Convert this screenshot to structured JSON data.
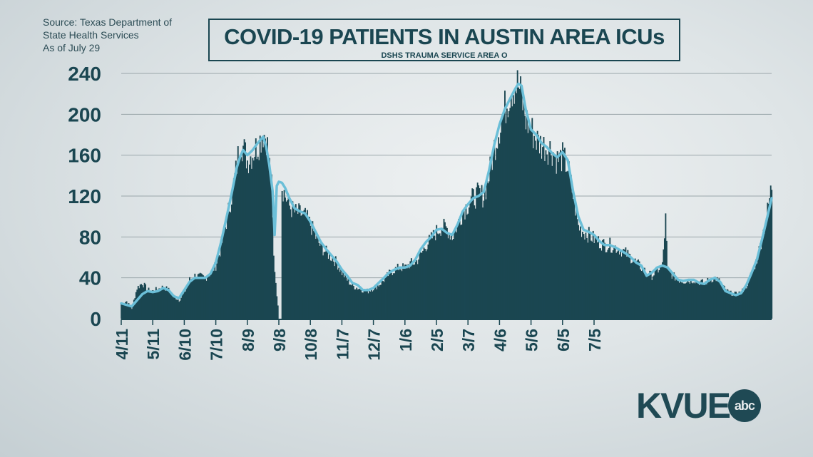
{
  "source": {
    "line1": "Source: Texas Department of",
    "line2": "State Health Services",
    "line3": "As of July 29"
  },
  "colors": {
    "bar": "#1a4651",
    "line": "#6bbfd8",
    "grid": "#9aa6aa",
    "text": "#1a4651"
  },
  "logo": {
    "text": "KVUE",
    "badge": "abc"
  },
  "chart_data": {
    "type": "bar",
    "title": "COVID-19 PATIENTS IN AUSTIN AREA ICUs",
    "subtitle": "DSHS TRAUMA SERVICE AREA O",
    "xlabel": "",
    "ylabel": "",
    "ylim": [
      0,
      240
    ],
    "yticks": [
      0,
      40,
      80,
      120,
      160,
      200,
      240
    ],
    "xtick_labels": [
      "4/11",
      "5/11",
      "6/10",
      "7/10",
      "8/9",
      "9/8",
      "10/8",
      "11/7",
      "12/7",
      "1/6",
      "2/5",
      "3/7",
      "4/6",
      "5/6",
      "6/5",
      "7/5"
    ],
    "grid": true,
    "series": [
      {
        "type": "bar",
        "description_points_day_value": [
          [
            0,
            14
          ],
          [
            5,
            17
          ],
          [
            10,
            10
          ],
          [
            15,
            30
          ],
          [
            20,
            35
          ],
          [
            25,
            28
          ],
          [
            30,
            27
          ],
          [
            35,
            29
          ],
          [
            40,
            31
          ],
          [
            45,
            28
          ],
          [
            50,
            22
          ],
          [
            55,
            18
          ],
          [
            60,
            25
          ],
          [
            65,
            38
          ],
          [
            70,
            42
          ],
          [
            75,
            41
          ],
          [
            80,
            40
          ],
          [
            85,
            45
          ],
          [
            90,
            52
          ],
          [
            95,
            70
          ],
          [
            100,
            95
          ],
          [
            105,
            120
          ],
          [
            110,
            150
          ],
          [
            113,
            175
          ],
          [
            116,
            168
          ],
          [
            120,
            155
          ],
          [
            125,
            162
          ],
          [
            130,
            170
          ],
          [
            135,
            182
          ],
          [
            138,
            178
          ],
          [
            140,
            160
          ],
          [
            143,
            130
          ],
          [
            145,
            60
          ],
          [
            150,
            0
          ],
          [
            152,
            0
          ],
          [
            153,
            130
          ],
          [
            156,
            120
          ],
          [
            160,
            110
          ],
          [
            165,
            104
          ],
          [
            170,
            103
          ],
          [
            175,
            100
          ],
          [
            180,
            92
          ],
          [
            185,
            80
          ],
          [
            190,
            70
          ],
          [
            195,
            65
          ],
          [
            200,
            60
          ],
          [
            205,
            55
          ],
          [
            210,
            45
          ],
          [
            215,
            38
          ],
          [
            220,
            32
          ],
          [
            225,
            30
          ],
          [
            230,
            28
          ],
          [
            235,
            27
          ],
          [
            240,
            30
          ],
          [
            245,
            33
          ],
          [
            250,
            38
          ],
          [
            255,
            44
          ],
          [
            260,
            48
          ],
          [
            265,
            50
          ],
          [
            270,
            50
          ],
          [
            275,
            54
          ],
          [
            280,
            55
          ],
          [
            285,
            62
          ],
          [
            290,
            72
          ],
          [
            295,
            78
          ],
          [
            300,
            85
          ],
          [
            305,
            90
          ],
          [
            310,
            88
          ],
          [
            315,
            80
          ],
          [
            320,
            92
          ],
          [
            325,
            105
          ],
          [
            330,
            112
          ],
          [
            335,
            118
          ],
          [
            340,
            122
          ],
          [
            345,
            120
          ],
          [
            350,
            140
          ],
          [
            355,
            168
          ],
          [
            360,
            188
          ],
          [
            365,
            205
          ],
          [
            370,
            222
          ],
          [
            375,
            230
          ],
          [
            378,
            228
          ],
          [
            380,
            220
          ],
          [
            385,
            195
          ],
          [
            390,
            185
          ],
          [
            395,
            175
          ],
          [
            400,
            170
          ],
          [
            405,
            168
          ],
          [
            410,
            165
          ],
          [
            415,
            155
          ],
          [
            420,
            158
          ],
          [
            425,
            148
          ],
          [
            430,
            120
          ],
          [
            435,
            90
          ],
          [
            440,
            85
          ],
          [
            445,
            82
          ],
          [
            450,
            78
          ],
          [
            455,
            75
          ],
          [
            460,
            72
          ],
          [
            465,
            72
          ],
          [
            470,
            70
          ],
          [
            475,
            68
          ],
          [
            480,
            64
          ],
          [
            485,
            60
          ],
          [
            490,
            55
          ],
          [
            495,
            50
          ],
          [
            500,
            45
          ],
          [
            505,
            42
          ],
          [
            510,
            47
          ],
          [
            515,
            52
          ],
          [
            518,
            97
          ],
          [
            520,
            48
          ],
          [
            525,
            42
          ],
          [
            530,
            38
          ],
          [
            535,
            37
          ],
          [
            540,
            37
          ],
          [
            545,
            38
          ],
          [
            550,
            36
          ],
          [
            555,
            35
          ],
          [
            560,
            38
          ],
          [
            565,
            40
          ],
          [
            570,
            36
          ],
          [
            575,
            28
          ],
          [
            580,
            25
          ],
          [
            585,
            24
          ],
          [
            590,
            26
          ],
          [
            595,
            32
          ],
          [
            600,
            45
          ],
          [
            605,
            58
          ],
          [
            610,
            80
          ],
          [
            615,
            105
          ],
          [
            619,
            130
          ]
        ]
      },
      {
        "type": "line",
        "description_points_day_value": [
          [
            0,
            15
          ],
          [
            10,
            12
          ],
          [
            15,
            18
          ],
          [
            20,
            24
          ],
          [
            25,
            27
          ],
          [
            30,
            26
          ],
          [
            35,
            27
          ],
          [
            40,
            30
          ],
          [
            45,
            28
          ],
          [
            50,
            22
          ],
          [
            55,
            20
          ],
          [
            60,
            28
          ],
          [
            65,
            36
          ],
          [
            70,
            40
          ],
          [
            75,
            40
          ],
          [
            80,
            40
          ],
          [
            85,
            44
          ],
          [
            90,
            55
          ],
          [
            95,
            75
          ],
          [
            100,
            98
          ],
          [
            105,
            122
          ],
          [
            110,
            148
          ],
          [
            113,
            158
          ],
          [
            116,
            165
          ],
          [
            120,
            160
          ],
          [
            125,
            165
          ],
          [
            130,
            172
          ],
          [
            135,
            178
          ],
          [
            138,
            168
          ],
          [
            141,
            150
          ],
          [
            144,
            125
          ],
          [
            146,
            82
          ],
          [
            148,
            130
          ],
          [
            150,
            134
          ],
          [
            153,
            133
          ],
          [
            156,
            128
          ],
          [
            160,
            118
          ],
          [
            165,
            108
          ],
          [
            170,
            105
          ],
          [
            175,
            103
          ],
          [
            180,
            95
          ],
          [
            185,
            85
          ],
          [
            190,
            75
          ],
          [
            195,
            68
          ],
          [
            200,
            62
          ],
          [
            205,
            56
          ],
          [
            210,
            48
          ],
          [
            215,
            42
          ],
          [
            220,
            35
          ],
          [
            225,
            33
          ],
          [
            230,
            28
          ],
          [
            235,
            28
          ],
          [
            240,
            30
          ],
          [
            245,
            35
          ],
          [
            250,
            40
          ],
          [
            255,
            45
          ],
          [
            260,
            48
          ],
          [
            265,
            50
          ],
          [
            270,
            50
          ],
          [
            275,
            52
          ],
          [
            280,
            58
          ],
          [
            285,
            68
          ],
          [
            290,
            75
          ],
          [
            295,
            80
          ],
          [
            300,
            87
          ],
          [
            305,
            88
          ],
          [
            310,
            84
          ],
          [
            315,
            82
          ],
          [
            320,
            92
          ],
          [
            325,
            105
          ],
          [
            330,
            112
          ],
          [
            335,
            118
          ],
          [
            340,
            120
          ],
          [
            345,
            124
          ],
          [
            350,
            145
          ],
          [
            355,
            170
          ],
          [
            360,
            190
          ],
          [
            365,
            205
          ],
          [
            370,
            215
          ],
          [
            375,
            225
          ],
          [
            378,
            230
          ],
          [
            381,
            228
          ],
          [
            385,
            205
          ],
          [
            390,
            185
          ],
          [
            395,
            180
          ],
          [
            400,
            172
          ],
          [
            405,
            168
          ],
          [
            410,
            162
          ],
          [
            415,
            158
          ],
          [
            420,
            163
          ],
          [
            425,
            155
          ],
          [
            430,
            125
          ],
          [
            435,
            100
          ],
          [
            440,
            87
          ],
          [
            445,
            85
          ],
          [
            450,
            82
          ],
          [
            455,
            76
          ],
          [
            460,
            72
          ],
          [
            465,
            72
          ],
          [
            470,
            70
          ],
          [
            475,
            67
          ],
          [
            480,
            64
          ],
          [
            485,
            60
          ],
          [
            490,
            55
          ],
          [
            495,
            52
          ],
          [
            500,
            42
          ],
          [
            505,
            45
          ],
          [
            510,
            50
          ],
          [
            515,
            52
          ],
          [
            520,
            50
          ],
          [
            525,
            44
          ],
          [
            530,
            38
          ],
          [
            535,
            37
          ],
          [
            540,
            38
          ],
          [
            545,
            38
          ],
          [
            550,
            35
          ],
          [
            555,
            34
          ],
          [
            560,
            38
          ],
          [
            565,
            40
          ],
          [
            570,
            36
          ],
          [
            575,
            27
          ],
          [
            580,
            25
          ],
          [
            585,
            23
          ],
          [
            590,
            25
          ],
          [
            595,
            33
          ],
          [
            600,
            45
          ],
          [
            605,
            58
          ],
          [
            610,
            78
          ],
          [
            615,
            100
          ],
          [
            619,
            118
          ]
        ]
      }
    ]
  }
}
